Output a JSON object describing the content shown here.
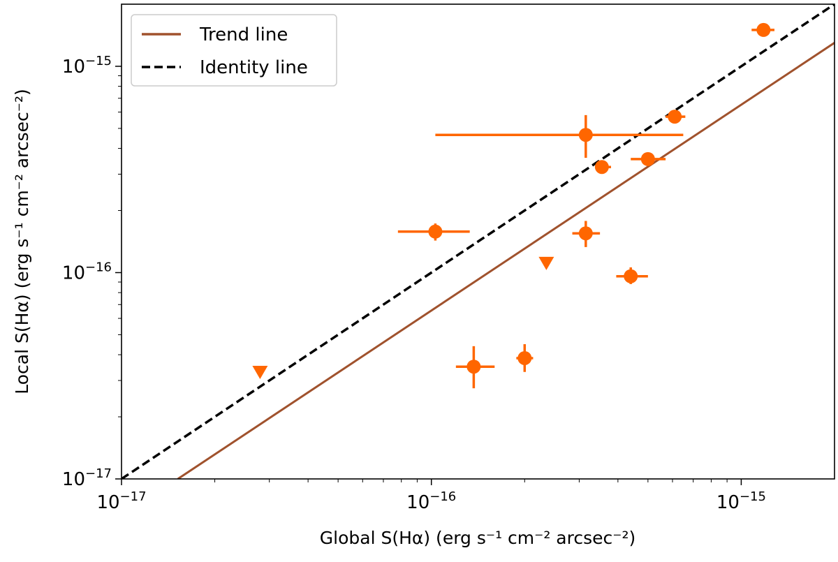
{
  "chart_data": {
    "type": "scatter",
    "xscale": "log",
    "yscale": "log",
    "xlim": [
      1e-17,
      2e-15
    ],
    "ylim": [
      1e-17,
      2e-15
    ],
    "xlabel": "Global S(Hα) (erg s⁻¹ cm⁻² arcsec⁻²)",
    "ylabel": "Local S(Hα) (erg s⁻¹ cm⁻² arcsec⁻²)",
    "xticks": [
      {
        "value": 1e-17,
        "base": "10",
        "exp": "−17"
      },
      {
        "value": 1e-16,
        "base": "10",
        "exp": "−16"
      },
      {
        "value": 1e-15,
        "base": "10",
        "exp": "−15"
      }
    ],
    "yticks": [
      {
        "value": 1e-17,
        "base": "10",
        "exp": "−17"
      },
      {
        "value": 1e-16,
        "base": "10",
        "exp": "−16"
      },
      {
        "value": 1e-15,
        "base": "10",
        "exp": "−15"
      }
    ],
    "marker_color": "#ff6600",
    "trend_color": "#a0522d",
    "identity_color": "#000000",
    "legend": {
      "position": "upper-left",
      "entries": [
        {
          "label": "Trend line",
          "style": "solid",
          "color": "#a0522d"
        },
        {
          "label": "Identity line",
          "style": "dashed",
          "color": "#000000"
        }
      ]
    },
    "trend_line": {
      "x": [
        1.52e-17,
        2e-15
      ],
      "y": [
        1e-17,
        1.3e-15
      ]
    },
    "identity_line": {
      "x": [
        1e-17,
        2e-15
      ],
      "y": [
        1e-17,
        2e-15
      ]
    },
    "points": [
      {
        "x": 1.18e-15,
        "y": 1.5e-15,
        "xerr": [
          1.08e-15,
          1.28e-15
        ],
        "yerr": null
      },
      {
        "x": 6.1e-16,
        "y": 5.7e-16,
        "xerr": [
          5.7e-16,
          6.6e-16
        ],
        "yerr": [
          5.4e-16,
          6e-16
        ]
      },
      {
        "x": 3.15e-16,
        "y": 4.65e-16,
        "xerr": [
          1.03e-16,
          6.5e-16
        ],
        "yerr": [
          3.6e-16,
          5.8e-16
        ]
      },
      {
        "x": 5e-16,
        "y": 3.55e-16,
        "xerr": [
          4.4e-16,
          5.7e-16
        ],
        "yerr": [
          3.35e-16,
          3.75e-16
        ]
      },
      {
        "x": 3.55e-16,
        "y": 3.25e-16,
        "xerr": [
          3.4e-16,
          3.8e-16
        ],
        "yerr": [
          3.05e-16,
          3.45e-16
        ]
      },
      {
        "x": 1.03e-16,
        "y": 1.58e-16,
        "xerr": [
          7.8e-17,
          1.33e-16
        ],
        "yerr": [
          1.43e-16,
          1.73e-16
        ]
      },
      {
        "x": 3.15e-16,
        "y": 1.55e-16,
        "xerr": [
          2.85e-16,
          3.5e-16
        ],
        "yerr": [
          1.33e-16,
          1.78e-16
        ]
      },
      {
        "x": 4.4e-16,
        "y": 9.6e-17,
        "xerr": [
          3.95e-16,
          5e-16
        ],
        "yerr": [
          8.8e-17,
          1.06e-16
        ]
      },
      {
        "x": 1.37e-16,
        "y": 3.5e-17,
        "xerr": [
          1.2e-16,
          1.6e-16
        ],
        "yerr": [
          2.75e-17,
          4.4e-17
        ]
      },
      {
        "x": 2e-16,
        "y": 3.85e-17,
        "xerr": [
          1.88e-16,
          2.13e-16
        ],
        "yerr": [
          3.3e-17,
          4.5e-17
        ]
      }
    ],
    "upper_limits": [
      {
        "x": 2.35e-16,
        "y": 1.12e-16
      },
      {
        "x": 2.8e-17,
        "y": 3.32e-17
      }
    ]
  }
}
